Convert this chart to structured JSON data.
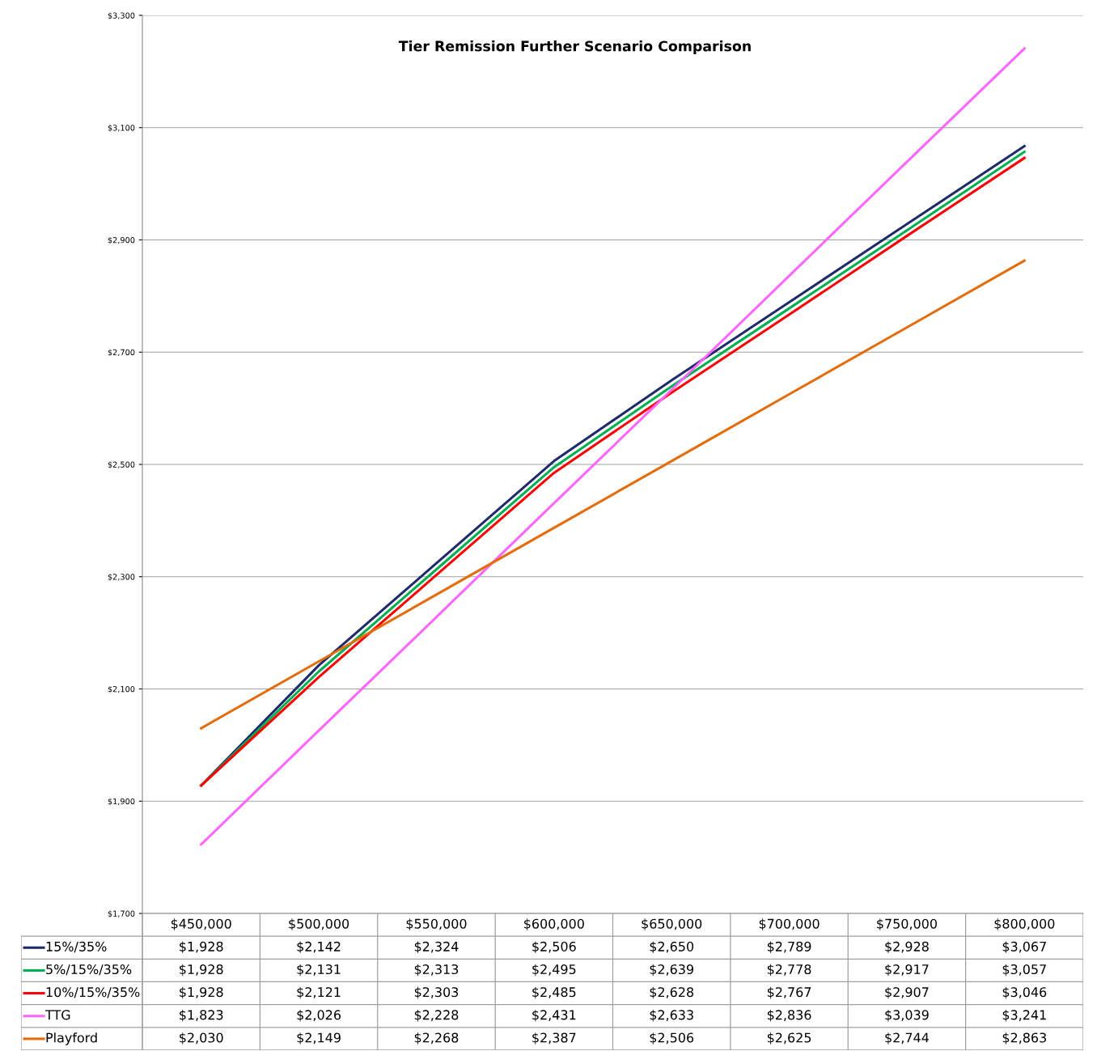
{
  "chart_data": {
    "type": "line",
    "title": "Tier Remission Further Scenario Comparison",
    "categories": [
      "$450,000",
      "$500,000",
      "$550,000",
      "$600,000",
      "$650,000",
      "$700,000",
      "$750,000",
      "$800,000"
    ],
    "series": [
      {
        "name": "15%/35%",
        "color": "#1f2a6b",
        "values": [
          1928,
          2142,
          2324,
          2506,
          2650,
          2789,
          2928,
          3067
        ],
        "value_labels": [
          "$1,928",
          "$2,142",
          "$2,324",
          "$2,506",
          "$2,650",
          "$2,789",
          "$2,928",
          "$3,067"
        ]
      },
      {
        "name": "5%/15%/35%",
        "color": "#00b050",
        "values": [
          1928,
          2131,
          2313,
          2495,
          2639,
          2778,
          2917,
          3057
        ],
        "value_labels": [
          "$1,928",
          "$2,131",
          "$2,313",
          "$2,495",
          "$2,639",
          "$2,778",
          "$2,917",
          "$3,057"
        ]
      },
      {
        "name": "10%/15%/35%",
        "color": "#ff0000",
        "values": [
          1928,
          2121,
          2303,
          2485,
          2628,
          2767,
          2907,
          3046
        ],
        "value_labels": [
          "$1,928",
          "$2,121",
          "$2,303",
          "$2,485",
          "$2,628",
          "$2,767",
          "$2,907",
          "$3,046"
        ]
      },
      {
        "name": "TTG",
        "color": "#ff66ff",
        "values": [
          1823,
          2026,
          2228,
          2431,
          2633,
          2836,
          3039,
          3241
        ],
        "value_labels": [
          "$1,823",
          "$2,026",
          "$2,228",
          "$2,431",
          "$2,633",
          "$2,836",
          "$3,039",
          "$3,241"
        ]
      },
      {
        "name": "Playford",
        "color": "#e46c0a",
        "values": [
          2030,
          2149,
          2268,
          2387,
          2506,
          2625,
          2744,
          2863
        ],
        "value_labels": [
          "$2,030",
          "$2,149",
          "$2,268",
          "$2,387",
          "$2,506",
          "$2,625",
          "$2,744",
          "$2,863"
        ]
      }
    ],
    "ylim": [
      1700,
      3300
    ],
    "yticks": [
      {
        "value": 1700,
        "label": "$1,700"
      },
      {
        "value": 1900,
        "label": "$1,900"
      },
      {
        "value": 2100,
        "label": "$2,100"
      },
      {
        "value": 2300,
        "label": "$2,300"
      },
      {
        "value": 2500,
        "label": "$2,500"
      },
      {
        "value": 2700,
        "label": "$2,700"
      },
      {
        "value": 2900,
        "label": "$2,900"
      },
      {
        "value": 3100,
        "label": "$3,100"
      },
      {
        "value": 3300,
        "label": "$3,300"
      }
    ],
    "grid": "y",
    "legend": "bottom",
    "marker": "none",
    "line_style": "solid"
  }
}
